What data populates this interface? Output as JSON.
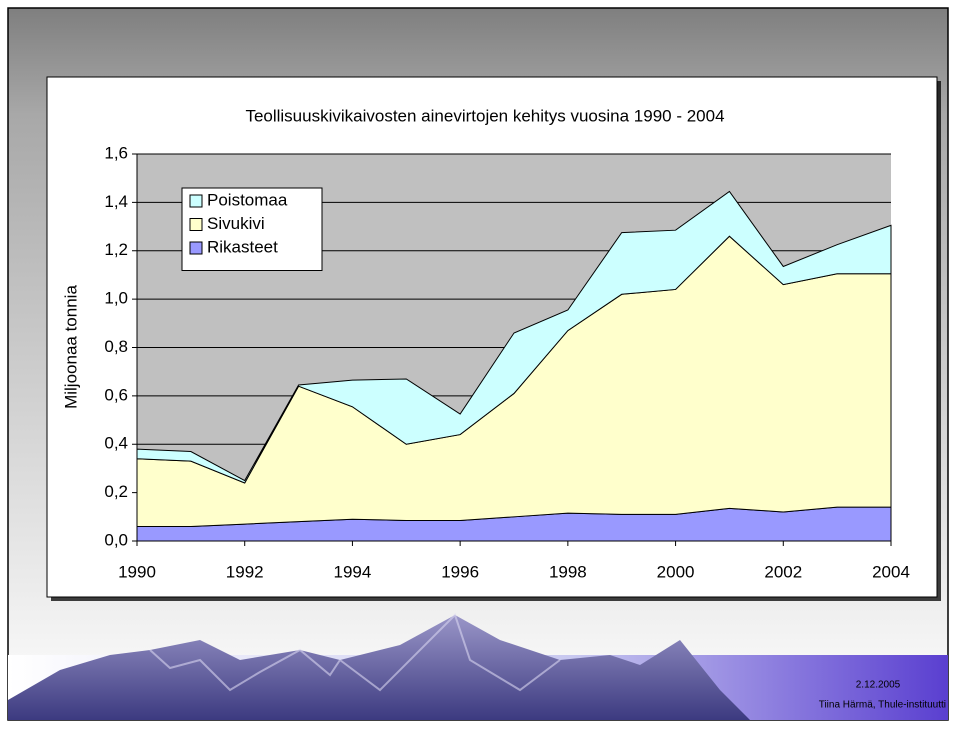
{
  "chart_data": {
    "type": "stacked-area",
    "title": "Teollisuuskivikaivosten ainevirtojen kehitys vuosina 1990 - 2004",
    "y_label": "Miljoonaa tonnia",
    "x": [
      1990,
      1991,
      1992,
      1993,
      1994,
      1995,
      1996,
      1997,
      1998,
      1999,
      2000,
      2001,
      2002,
      2003,
      2004
    ],
    "xlim": [
      1990,
      2004
    ],
    "xticks": [
      1990,
      1992,
      1994,
      1996,
      1998,
      2000,
      2002,
      2004
    ],
    "ylim": [
      0,
      1.6
    ],
    "yticks": [
      {
        "value": 0,
        "label": "0,0"
      },
      {
        "value": 0.2,
        "label": "0,2"
      },
      {
        "value": 0.4,
        "label": "0,4"
      },
      {
        "value": 0.6,
        "label": "0,6"
      },
      {
        "value": 0.8,
        "label": "0,8"
      },
      {
        "value": 1.0,
        "label": "1,0"
      },
      {
        "value": 1.2,
        "label": "1,2"
      },
      {
        "value": 1.4,
        "label": "1,4"
      },
      {
        "value": 1.6,
        "label": "1,6"
      }
    ],
    "grid": true,
    "legend": "top-left",
    "series": [
      {
        "name": "Rikasteet",
        "color": "#9999ff",
        "values": [
          0.06,
          0.06,
          0.07,
          0.08,
          0.09,
          0.085,
          0.085,
          0.1,
          0.115,
          0.11,
          0.11,
          0.135,
          0.12,
          0.14,
          0.14
        ]
      },
      {
        "name": "Sivukivi",
        "color": "#ffffcc",
        "values": [
          0.28,
          0.27,
          0.17,
          0.56,
          0.465,
          0.315,
          0.355,
          0.51,
          0.755,
          0.91,
          0.93,
          1.125,
          0.94,
          0.965,
          0.965
        ]
      },
      {
        "name": "Poistomaa",
        "color": "#ccffff",
        "values": [
          0.04,
          0.04,
          0.01,
          0.005,
          0.11,
          0.27,
          0.085,
          0.25,
          0.085,
          0.255,
          0.245,
          0.185,
          0.075,
          0.12,
          0.2
        ]
      }
    ]
  },
  "slide": {
    "date": "2.12.2005",
    "author": "Tiina Härmä, Thule-instituutti"
  }
}
